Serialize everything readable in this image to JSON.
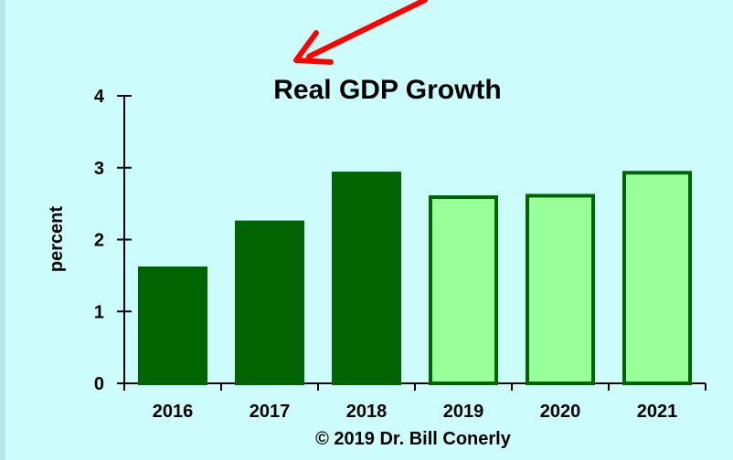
{
  "chart_data": {
    "type": "bar",
    "title": "Real GDP Growth",
    "ylabel": "percent",
    "xlabel": "",
    "categories": [
      "2016",
      "2017",
      "2018",
      "2019",
      "2020",
      "2021"
    ],
    "values": [
      1.6,
      2.24,
      2.92,
      2.59,
      2.61,
      2.93
    ],
    "ylim": [
      0,
      4
    ],
    "yticks": [
      0,
      1,
      2,
      3,
      4
    ],
    "grid": false,
    "colors": {
      "actual_fill": "#006400",
      "forecast_fill": "#99ff99",
      "outline": "#006400",
      "background": "#ccfcfc",
      "annotation_arrow": "#ff0000"
    },
    "forecast_from_index": 3
  },
  "credit": "© 2019 Dr. Bill Conerly"
}
